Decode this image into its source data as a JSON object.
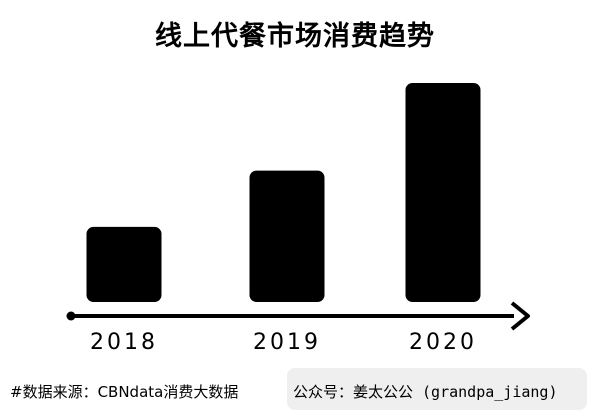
{
  "chart_data": {
    "type": "bar",
    "title": "线上代餐市场消费趋势",
    "categories": [
      "2018",
      "2019",
      "2020"
    ],
    "values": [
      24,
      42,
      70
    ],
    "ylim": [
      0,
      70
    ],
    "bar_color": "#000000",
    "grid": false,
    "legend": "none"
  },
  "footer": {
    "source": "#数据来源：CBNdata消费大数据",
    "credit": "公众号：姜太公公 (grandpa_jiang)"
  }
}
